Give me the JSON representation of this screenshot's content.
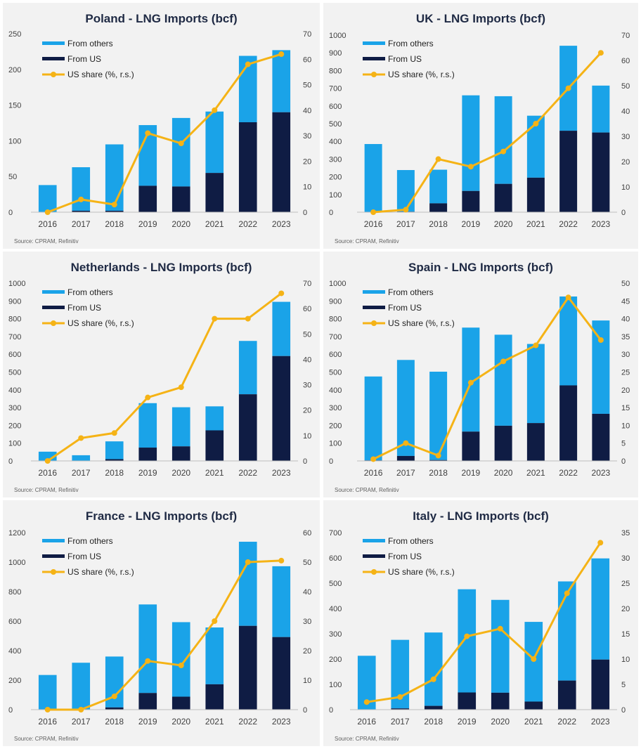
{
  "colors": {
    "from_others": "#1aa3e8",
    "from_us": "#0f1c44",
    "us_share": "#f5b316"
  },
  "chart_data": [
    {
      "type": "bar",
      "title": "Poland - LNG Imports (bcf)",
      "categories": [
        "2016",
        "2017",
        "2018",
        "2019",
        "2020",
        "2021",
        "2022",
        "2023"
      ],
      "series": [
        {
          "name": "From others",
          "values": [
            38,
            61,
            93,
            85,
            96,
            86,
            93,
            87
          ]
        },
        {
          "name": "From US",
          "values": [
            0,
            2,
            2,
            37,
            36,
            55,
            126,
            140
          ]
        },
        {
          "name": "US share (%, r.s.)",
          "values": [
            0,
            5,
            3,
            31,
            27,
            40,
            58,
            62
          ]
        }
      ],
      "ylim": [
        0,
        250
      ],
      "yticks": [
        "0",
        "50",
        "100",
        "150",
        "200",
        "250"
      ],
      "y2lim": [
        0,
        70
      ],
      "y2ticks": [
        "0",
        "10",
        "20",
        "30",
        "40",
        "50",
        "60",
        "70"
      ],
      "source": "Source: CPRAM, Refinitiv"
    },
    {
      "type": "bar",
      "title": "UK - LNG Imports (bcf)",
      "categories": [
        "2016",
        "2017",
        "2018",
        "2019",
        "2020",
        "2021",
        "2022",
        "2023"
      ],
      "series": [
        {
          "name": "From others",
          "values": [
            385,
            235,
            190,
            540,
            495,
            350,
            480,
            265
          ]
        },
        {
          "name": "From US",
          "values": [
            0,
            3,
            50,
            120,
            160,
            195,
            460,
            450
          ]
        },
        {
          "name": "US share (%, r.s.)",
          "values": [
            0,
            1,
            21,
            18,
            24,
            35,
            49,
            63
          ]
        }
      ],
      "ylim": [
        0,
        1000
      ],
      "yticks": [
        "0",
        "100",
        "200",
        "300",
        "400",
        "500",
        "600",
        "700",
        "800",
        "900",
        "1000"
      ],
      "y2lim": [
        0,
        70
      ],
      "y2ticks": [
        "0",
        "10",
        "20",
        "30",
        "40",
        "50",
        "60",
        "70"
      ],
      "source": "Source: CPRAM, Refinitiv"
    },
    {
      "type": "bar",
      "title": "Netherlands - LNG Imports (bcf)",
      "categories": [
        "2016",
        "2017",
        "2018",
        "2019",
        "2020",
        "2021",
        "2022",
        "2023"
      ],
      "series": [
        {
          "name": "From others",
          "values": [
            52,
            30,
            100,
            250,
            220,
            135,
            300,
            305
          ]
        },
        {
          "name": "From US",
          "values": [
            0,
            2,
            10,
            75,
            82,
            172,
            375,
            590
          ]
        },
        {
          "name": "US share (%, r.s.)",
          "values": [
            0,
            9,
            11,
            25,
            29,
            56,
            56,
            66
          ]
        }
      ],
      "ylim": [
        0,
        1000
      ],
      "yticks": [
        "0",
        "100",
        "200",
        "300",
        "400",
        "500",
        "600",
        "700",
        "800",
        "900",
        "1000"
      ],
      "y2lim": [
        0,
        70
      ],
      "y2ticks": [
        "0",
        "10",
        "20",
        "30",
        "40",
        "50",
        "60",
        "70"
      ],
      "source": "Source: CPRAM, Refinitiv"
    },
    {
      "type": "bar",
      "title": "Spain - LNG Imports (bcf)",
      "categories": [
        "2016",
        "2017",
        "2018",
        "2019",
        "2020",
        "2021",
        "2022",
        "2023"
      ],
      "series": [
        {
          "name": "From others",
          "values": [
            472,
            540,
            497,
            585,
            512,
            445,
            500,
            525
          ]
        },
        {
          "name": "From US",
          "values": [
            3,
            28,
            5,
            165,
            198,
            213,
            425,
            265
          ]
        },
        {
          "name": "US share (%, r.s.)",
          "values": [
            0.5,
            5,
            1.5,
            22,
            28,
            32.5,
            46,
            34
          ]
        }
      ],
      "ylim": [
        0,
        1000
      ],
      "yticks": [
        "0",
        "100",
        "200",
        "300",
        "400",
        "500",
        "600",
        "700",
        "800",
        "900",
        "1000"
      ],
      "y2lim": [
        0,
        50
      ],
      "y2ticks": [
        "0",
        "5",
        "10",
        "15",
        "20",
        "25",
        "30",
        "35",
        "40",
        "45",
        "50"
      ],
      "source": "Source: CPRAM, Refinitiv"
    },
    {
      "type": "bar",
      "title": "France - LNG Imports (bcf)",
      "categories": [
        "2016",
        "2017",
        "2018",
        "2019",
        "2020",
        "2021",
        "2022",
        "2023"
      ],
      "series": [
        {
          "name": "From others",
          "values": [
            235,
            318,
            345,
            600,
            505,
            385,
            570,
            480
          ]
        },
        {
          "name": "From US",
          "values": [
            0,
            0,
            15,
            113,
            88,
            172,
            568,
            492
          ]
        },
        {
          "name": "US share (%, r.s.)",
          "values": [
            0,
            0,
            4.5,
            16.5,
            15,
            30,
            50,
            50.5
          ]
        }
      ],
      "ylim": [
        0,
        1200
      ],
      "yticks": [
        "0",
        "200",
        "400",
        "600",
        "800",
        "1000",
        "1200"
      ],
      "y2lim": [
        0,
        60
      ],
      "y2ticks": [
        "0",
        "10",
        "20",
        "30",
        "40",
        "50",
        "60"
      ],
      "source": "Source: CPRAM, Refinitiv"
    },
    {
      "type": "bar",
      "title": "Italy - LNG Imports (bcf)",
      "categories": [
        "2016",
        "2017",
        "2018",
        "2019",
        "2020",
        "2021",
        "2022",
        "2023"
      ],
      "series": [
        {
          "name": "From others",
          "values": [
            213,
            271,
            290,
            408,
            367,
            315,
            392,
            400
          ]
        },
        {
          "name": "From US",
          "values": [
            0,
            5,
            15,
            68,
            67,
            32,
            115,
            198
          ]
        },
        {
          "name": "US share (%, r.s.)",
          "values": [
            1.5,
            2.5,
            6,
            14.5,
            16,
            10,
            23,
            33
          ]
        }
      ],
      "ylim": [
        0,
        700
      ],
      "yticks": [
        "0",
        "100",
        "200",
        "300",
        "400",
        "500",
        "600",
        "700"
      ],
      "y2lim": [
        0,
        35
      ],
      "y2ticks": [
        "0",
        "5",
        "10",
        "15",
        "20",
        "25",
        "30",
        "35"
      ],
      "source": "Source: CPRAM, Refinitiv"
    }
  ]
}
